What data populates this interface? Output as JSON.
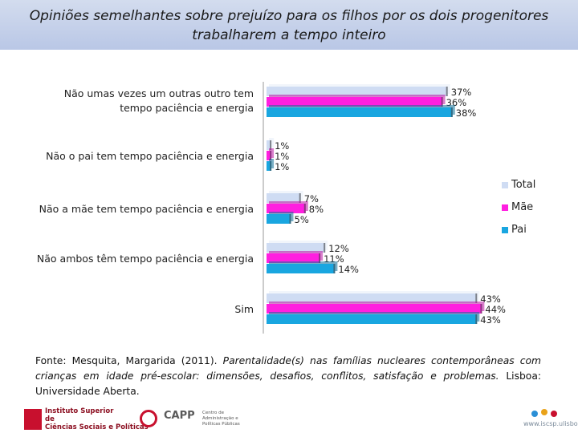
{
  "title": {
    "line1": "Opiniões semelhantes  sobre  prejuízo para os filhos  por os dois progenitores",
    "line2": "trabalharem a tempo inteiro"
  },
  "chart_data": {
    "type": "bar",
    "orientation": "horizontal",
    "categories": [
      "Não umas vezes um outras outro tem tempo paciência e energia",
      "Não o pai tem tempo paciência e energia",
      "Não a mãe tem tempo paciência e energia",
      "Não ambos têm tempo paciência e energia",
      "Sim"
    ],
    "category_lines": [
      [
        "Não umas vezes um outras outro tem",
        "tempo paciência e energia"
      ],
      [
        "Não o pai tem tempo paciência e energia"
      ],
      [
        "Não a mãe tem tempo paciência e energia"
      ],
      [
        "Não ambos têm tempo paciência e energia"
      ],
      [
        "Sim"
      ]
    ],
    "series": [
      {
        "name": "Total",
        "color": "#cfdcf3",
        "values": [
          37,
          1,
          7,
          12,
          43
        ],
        "labels": [
          "37%",
          "1%",
          "7%",
          "12%",
          "43%"
        ]
      },
      {
        "name": "Mãe",
        "color": "#ff1fe0",
        "values": [
          36,
          1,
          8,
          11,
          44
        ],
        "labels": [
          "36%",
          "1%",
          "8%",
          "11%",
          "44%"
        ]
      },
      {
        "name": "Pai",
        "color": "#19a6e0",
        "values": [
          38,
          1,
          5,
          14,
          43
        ],
        "labels": [
          "38%",
          "1%",
          "5%",
          "14%",
          "43%"
        ]
      }
    ],
    "xlim": [
      0,
      50
    ]
  },
  "source": {
    "prefix": "Fonte: Mesquita, Margarida (2011). ",
    "italic": "Parentalidade(s) nas famílias nucleares contemporâneas com crianças em idade pré-escolar: dimensões, desafios, conflitos, satisfação e problemas.",
    "suffix": " Lisboa: Universidade Aberta."
  },
  "footer": {
    "logo1_line1": "Instituto Superior",
    "logo1_line2": "de",
    "logo1_line3": "Ciências Sociais e Políticas",
    "logo2_name": "CAPP",
    "logo2_sub": "Centro de Administração e Políticas Públicas",
    "logo3_url": "www.iscsp.ulisboa.pt"
  },
  "colors": {
    "total": "#cfdcf3",
    "mae": "#ff1fe0",
    "pai": "#19a6e0",
    "header": "#c3cfea"
  }
}
